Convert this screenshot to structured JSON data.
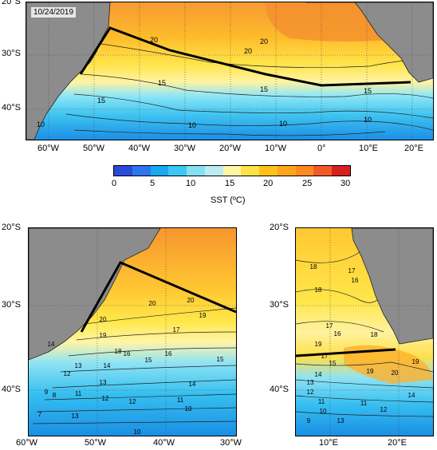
{
  "date": "10/24/2019",
  "colorbar": {
    "label": "SST (ºC)",
    "ticks": [
      "0",
      "5",
      "10",
      "15",
      "20",
      "25",
      "30"
    ],
    "colors": [
      "#2a4ad8",
      "#2f74ee",
      "#18a9f0",
      "#3cc7f4",
      "#86dff2",
      "#bdebf2",
      "#fff5a8",
      "#ffe24a",
      "#ffc21a",
      "#ffa51c",
      "#ff8a24",
      "#f05a24",
      "#d62020"
    ]
  },
  "top_map": {
    "lat_labels": [
      "20°S",
      "30°S",
      "40°S"
    ],
    "lon_labels": [
      "60°W",
      "50°W",
      "40°W",
      "30°W",
      "20°W",
      "10°W",
      "0°",
      "10°E",
      "20°E"
    ],
    "contour_labels": [
      "20",
      "20",
      "20",
      "15",
      "15",
      "15",
      "15",
      "10",
      "10",
      "10",
      "10"
    ]
  },
  "bottom_left_map": {
    "lat_labels": [
      "20°S",
      "30°S",
      "40°S"
    ],
    "lon_labels": [
      "60°W",
      "50°W",
      "40°W",
      "30°W"
    ],
    "contour_labels": [
      "20",
      "20",
      "19",
      "20",
      "19",
      "18",
      "17",
      "16",
      "16",
      "15",
      "15",
      "14",
      "14",
      "13",
      "12",
      "12",
      "11",
      "10",
      "9",
      "8",
      "7",
      "14",
      "13",
      "12",
      "11",
      "10",
      "13"
    ]
  },
  "bottom_right_map": {
    "lat_labels": [
      "20°S",
      "30°S",
      "40°S"
    ],
    "lon_labels": [
      "10°E",
      "20°E"
    ],
    "contour_labels": [
      "18",
      "17",
      "16",
      "18",
      "17",
      "16",
      "19",
      "18",
      "20",
      "19",
      "17",
      "15",
      "14",
      "13",
      "12",
      "11",
      "10",
      "9",
      "19",
      "12",
      "11",
      "14",
      "13"
    ]
  }
}
